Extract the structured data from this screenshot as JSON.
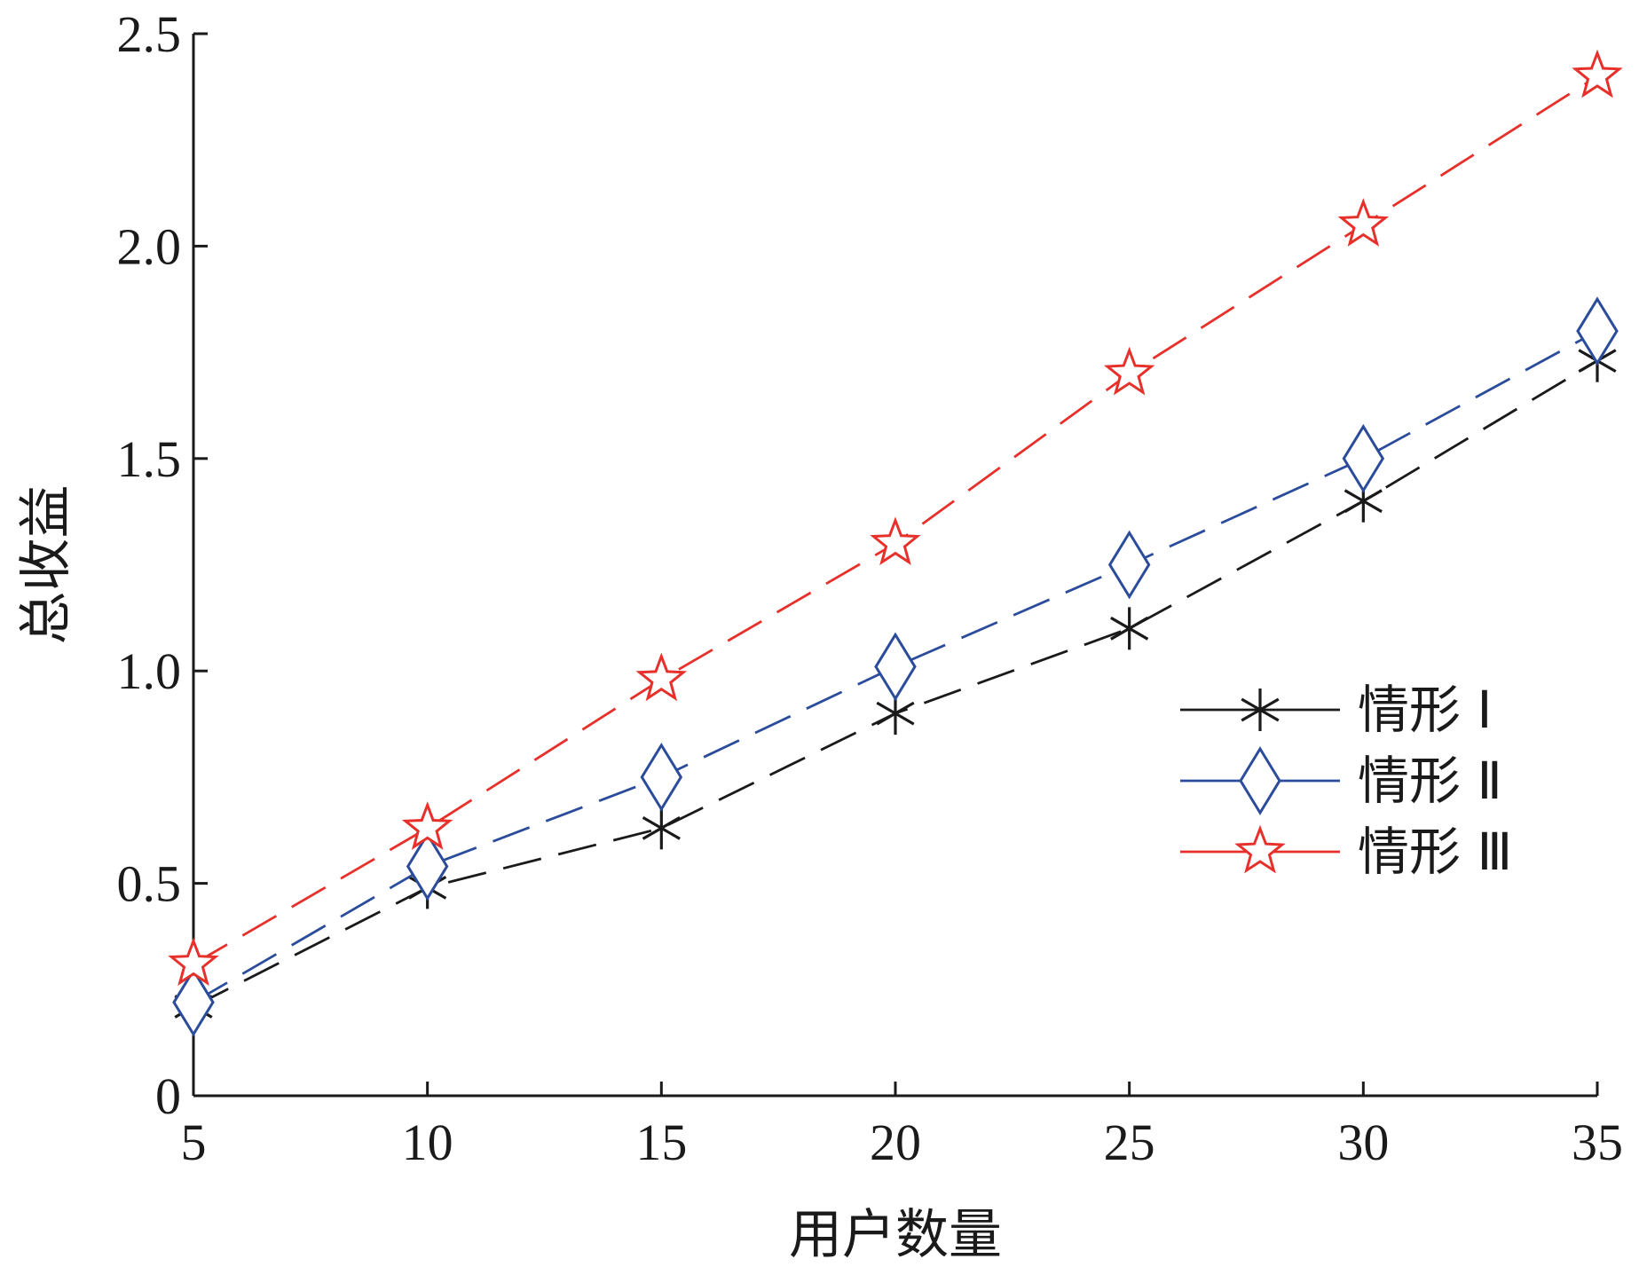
{
  "chart_data": {
    "type": "line",
    "xlabel": "用户数量",
    "ylabel": "总收益",
    "x": [
      5,
      10,
      15,
      20,
      25,
      30,
      35
    ],
    "xlim": [
      5,
      35
    ],
    "ylim": [
      0,
      2.5
    ],
    "xticks": [
      "5",
      "10",
      "15",
      "20",
      "25",
      "30",
      "35"
    ],
    "yticks": [
      "0",
      "0.5",
      "1.0",
      "1.5",
      "2.0",
      "2.5"
    ],
    "grid": false,
    "legend_position": "right-center",
    "series": [
      {
        "name": "情形 Ⅰ",
        "values": [
          0.21,
          0.49,
          0.63,
          0.9,
          1.1,
          1.4,
          1.73
        ],
        "color": "#1a1a1a",
        "marker": "asterisk",
        "line": "dashed"
      },
      {
        "name": "情形 Ⅱ",
        "values": [
          0.22,
          0.54,
          0.75,
          1.01,
          1.25,
          1.5,
          1.8
        ],
        "color": "#2b4c9b",
        "marker": "diamond",
        "line": "dashed"
      },
      {
        "name": "情形 Ⅲ",
        "values": [
          0.31,
          0.63,
          0.98,
          1.3,
          1.7,
          2.05,
          2.4
        ],
        "color": "#e8302b",
        "marker": "star",
        "line": "dashed"
      }
    ]
  }
}
